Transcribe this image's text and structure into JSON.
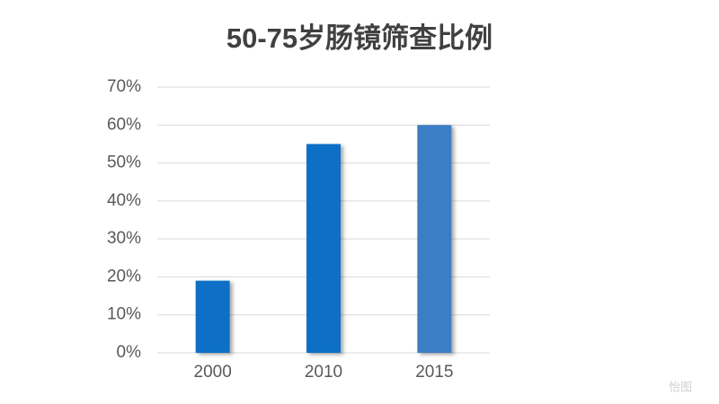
{
  "chart_data": {
    "type": "bar",
    "title": "50-75岁肠镜筛查比例",
    "categories": [
      "2000",
      "2010",
      "2015"
    ],
    "values": [
      19,
      55,
      60
    ],
    "colors": [
      "#0a70c6",
      "#0a70c6",
      "#3a7ec6"
    ],
    "ylim": [
      0,
      70
    ],
    "yticks": [
      {
        "value": 0,
        "label": "0%"
      },
      {
        "value": 10,
        "label": "10%"
      },
      {
        "value": 20,
        "label": "20%"
      },
      {
        "value": 30,
        "label": "30%"
      },
      {
        "value": 40,
        "label": "40%"
      },
      {
        "value": 50,
        "label": "50%"
      },
      {
        "value": 60,
        "label": "60%"
      },
      {
        "value": 70,
        "label": "70%"
      }
    ],
    "grid": true,
    "watermark": "怡图"
  }
}
